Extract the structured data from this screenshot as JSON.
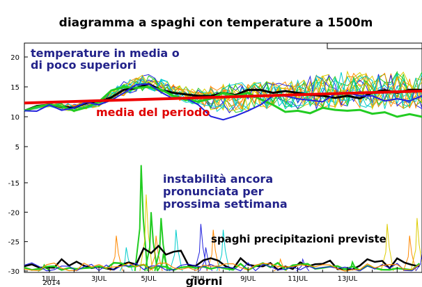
{
  "chart_data": {
    "type": "line",
    "title": "diagramma a spaghi con temperature a 1500m",
    "xlabel": "giorni",
    "x_ticks": [
      "1JUL",
      "3JUL",
      "5JUL",
      "7JUL",
      "9JUL",
      "11JUL",
      "13JUL"
    ],
    "x_year": "2014",
    "x_range_days": [
      0,
      16
    ],
    "upper_panel": {
      "y_ticks": [
        20,
        15,
        10,
        5
      ],
      "ylim": [
        0,
        23
      ],
      "series": [
        {
          "name": "",
          "role": "ensemble-black",
          "color": "#000000",
          "x": [
            0,
            1,
            2,
            3,
            4,
            5,
            6,
            7,
            8,
            9,
            10,
            11,
            12,
            13,
            14,
            15,
            16
          ],
          "values": [
            11,
            12,
            11.5,
            12.5,
            14.5,
            15.5,
            14,
            13.5,
            14,
            14.5,
            14,
            14,
            13.5,
            13.5,
            14,
            14,
            14.5
          ]
        },
        {
          "name": "",
          "role": "ensemble-green",
          "color": "#22cc22",
          "x": [
            0,
            1,
            2,
            3,
            4,
            5,
            6,
            7,
            8,
            9,
            10,
            11,
            12,
            13,
            14,
            15,
            16
          ],
          "values": [
            11,
            12,
            11,
            12.5,
            15,
            15,
            13.5,
            12.5,
            14,
            14,
            12,
            11,
            11.5,
            11,
            10.5,
            10,
            10
          ]
        },
        {
          "name": "",
          "role": "ensemble-blue",
          "color": "#2222dd",
          "x": [
            0,
            1,
            2,
            3,
            4,
            5,
            6,
            7,
            8,
            9,
            10,
            11,
            12,
            13,
            14,
            15,
            16
          ],
          "values": [
            11,
            12,
            11.5,
            12,
            14,
            15.5,
            13,
            12,
            9.5,
            11,
            13.5,
            13,
            12.5,
            14,
            13.5,
            13,
            13.5
          ]
        },
        {
          "name": "",
          "role": "climatology-red",
          "color": "#ee0000",
          "x": [
            0,
            16
          ],
          "values": [
            12.3,
            14.3
          ]
        }
      ],
      "ensemble_spread": {
        "min": [
          11,
          11.5,
          10.5,
          11.5,
          13,
          14,
          12.5,
          11,
          9.5,
          9.5,
          10.5,
          10,
          10,
          10.5,
          10,
          10,
          10
        ],
        "max": [
          11,
          12.5,
          12.5,
          13,
          16.5,
          18,
          16,
          15.5,
          16.5,
          17,
          17,
          17.5,
          18.5,
          19,
          18.5,
          19,
          19
        ]
      }
    },
    "lower_panel": {
      "y_ticks": [
        -15,
        -20,
        -25,
        -30
      ],
      "ylim": [
        -30,
        -10
      ],
      "series_spikes": [
        {
          "name": "",
          "color": "#22cc22",
          "x": 4.7,
          "peak": -12
        },
        {
          "name": "",
          "color": "#ddcc00",
          "x": 4.9,
          "peak": -17
        },
        {
          "name": "",
          "color": "#22cc22",
          "x": 5.1,
          "peak": -20
        },
        {
          "name": "",
          "color": "#ff8800",
          "x": 5.3,
          "peak": -24
        },
        {
          "name": "",
          "color": "#22cc22",
          "x": 5.5,
          "peak": -21
        },
        {
          "name": "",
          "color": "#22cc22",
          "x": 5.6,
          "peak": -27
        },
        {
          "name": "",
          "color": "#00cccc",
          "x": 6.1,
          "peak": -23
        },
        {
          "name": "",
          "color": "#2222dd",
          "x": 7.1,
          "peak": -22
        },
        {
          "name": "",
          "color": "#ff8800",
          "x": 7.6,
          "peak": -23
        },
        {
          "name": "",
          "color": "#00cccc",
          "x": 8.0,
          "peak": -23
        },
        {
          "name": "",
          "color": "#2222dd",
          "x": 7.3,
          "peak": -26
        },
        {
          "name": "",
          "color": "#ff8800",
          "x": 3.7,
          "peak": -24
        },
        {
          "name": "",
          "color": "#00cccc",
          "x": 4.1,
          "peak": -26
        },
        {
          "name": "",
          "color": "#ddcc00",
          "x": 14.6,
          "peak": -22
        },
        {
          "name": "",
          "color": "#ddcc00",
          "x": 15.8,
          "peak": -21
        },
        {
          "name": "",
          "color": "#ff8800",
          "x": 15.5,
          "peak": -24
        },
        {
          "name": "",
          "color": "#2222dd",
          "x": 16.0,
          "peak": -27
        },
        {
          "name": "",
          "color": "#22cc22",
          "x": 0.8,
          "peak": -29
        },
        {
          "name": "",
          "color": "#ff8800",
          "x": 10.3,
          "peak": -28
        },
        {
          "name": "",
          "color": "#2222dd",
          "x": 11.2,
          "peak": -28
        },
        {
          "name": "",
          "color": "#22cc22",
          "x": 13.2,
          "peak": -28.5
        }
      ]
    },
    "annotations": [
      {
        "id": "temp",
        "text": "temperature in media o"
      },
      {
        "id": "temp2",
        "text": "di poco superiori"
      },
      {
        "id": "media",
        "text": "media del periodo"
      },
      {
        "id": "inst1",
        "text": "instabilità ancora"
      },
      {
        "id": "inst2",
        "text": "pronunciata per"
      },
      {
        "id": "inst3",
        "text": "prossima settimana"
      },
      {
        "id": "precip",
        "text": "spaghi precipitazioni previste"
      }
    ],
    "grid": false,
    "legend": "none"
  }
}
